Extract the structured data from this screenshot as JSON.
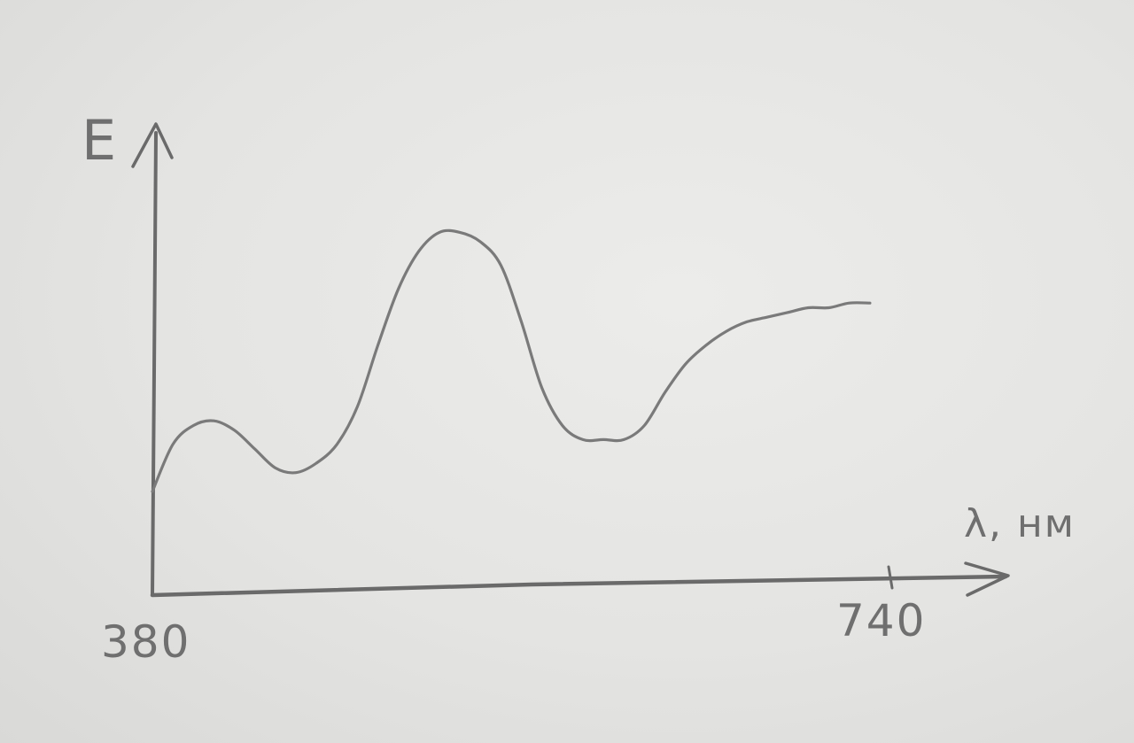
{
  "chart_data": {
    "type": "line",
    "title": "",
    "xlabel": "λ, нм",
    "ylabel": "E",
    "x_ticks": [
      "380",
      "740"
    ],
    "xlim": [
      380,
      740
    ],
    "ylim": [
      0,
      1
    ],
    "grid": false,
    "series": [
      {
        "name": "",
        "x": [
          380,
          390,
          400,
          410,
          420,
          430,
          440,
          450,
          460,
          470,
          480,
          490,
          500,
          510,
          520,
          530,
          540,
          550,
          560,
          570,
          580,
          590,
          600,
          610,
          620,
          630,
          640,
          650,
          660,
          670,
          680,
          690,
          700,
          710,
          720,
          730
        ],
        "y": [
          0.22,
          0.32,
          0.36,
          0.37,
          0.35,
          0.31,
          0.27,
          0.26,
          0.28,
          0.32,
          0.4,
          0.53,
          0.65,
          0.73,
          0.77,
          0.77,
          0.75,
          0.7,
          0.58,
          0.44,
          0.36,
          0.33,
          0.33,
          0.33,
          0.36,
          0.43,
          0.49,
          0.53,
          0.56,
          0.58,
          0.59,
          0.6,
          0.61,
          0.61,
          0.62,
          0.62
        ]
      }
    ]
  }
}
